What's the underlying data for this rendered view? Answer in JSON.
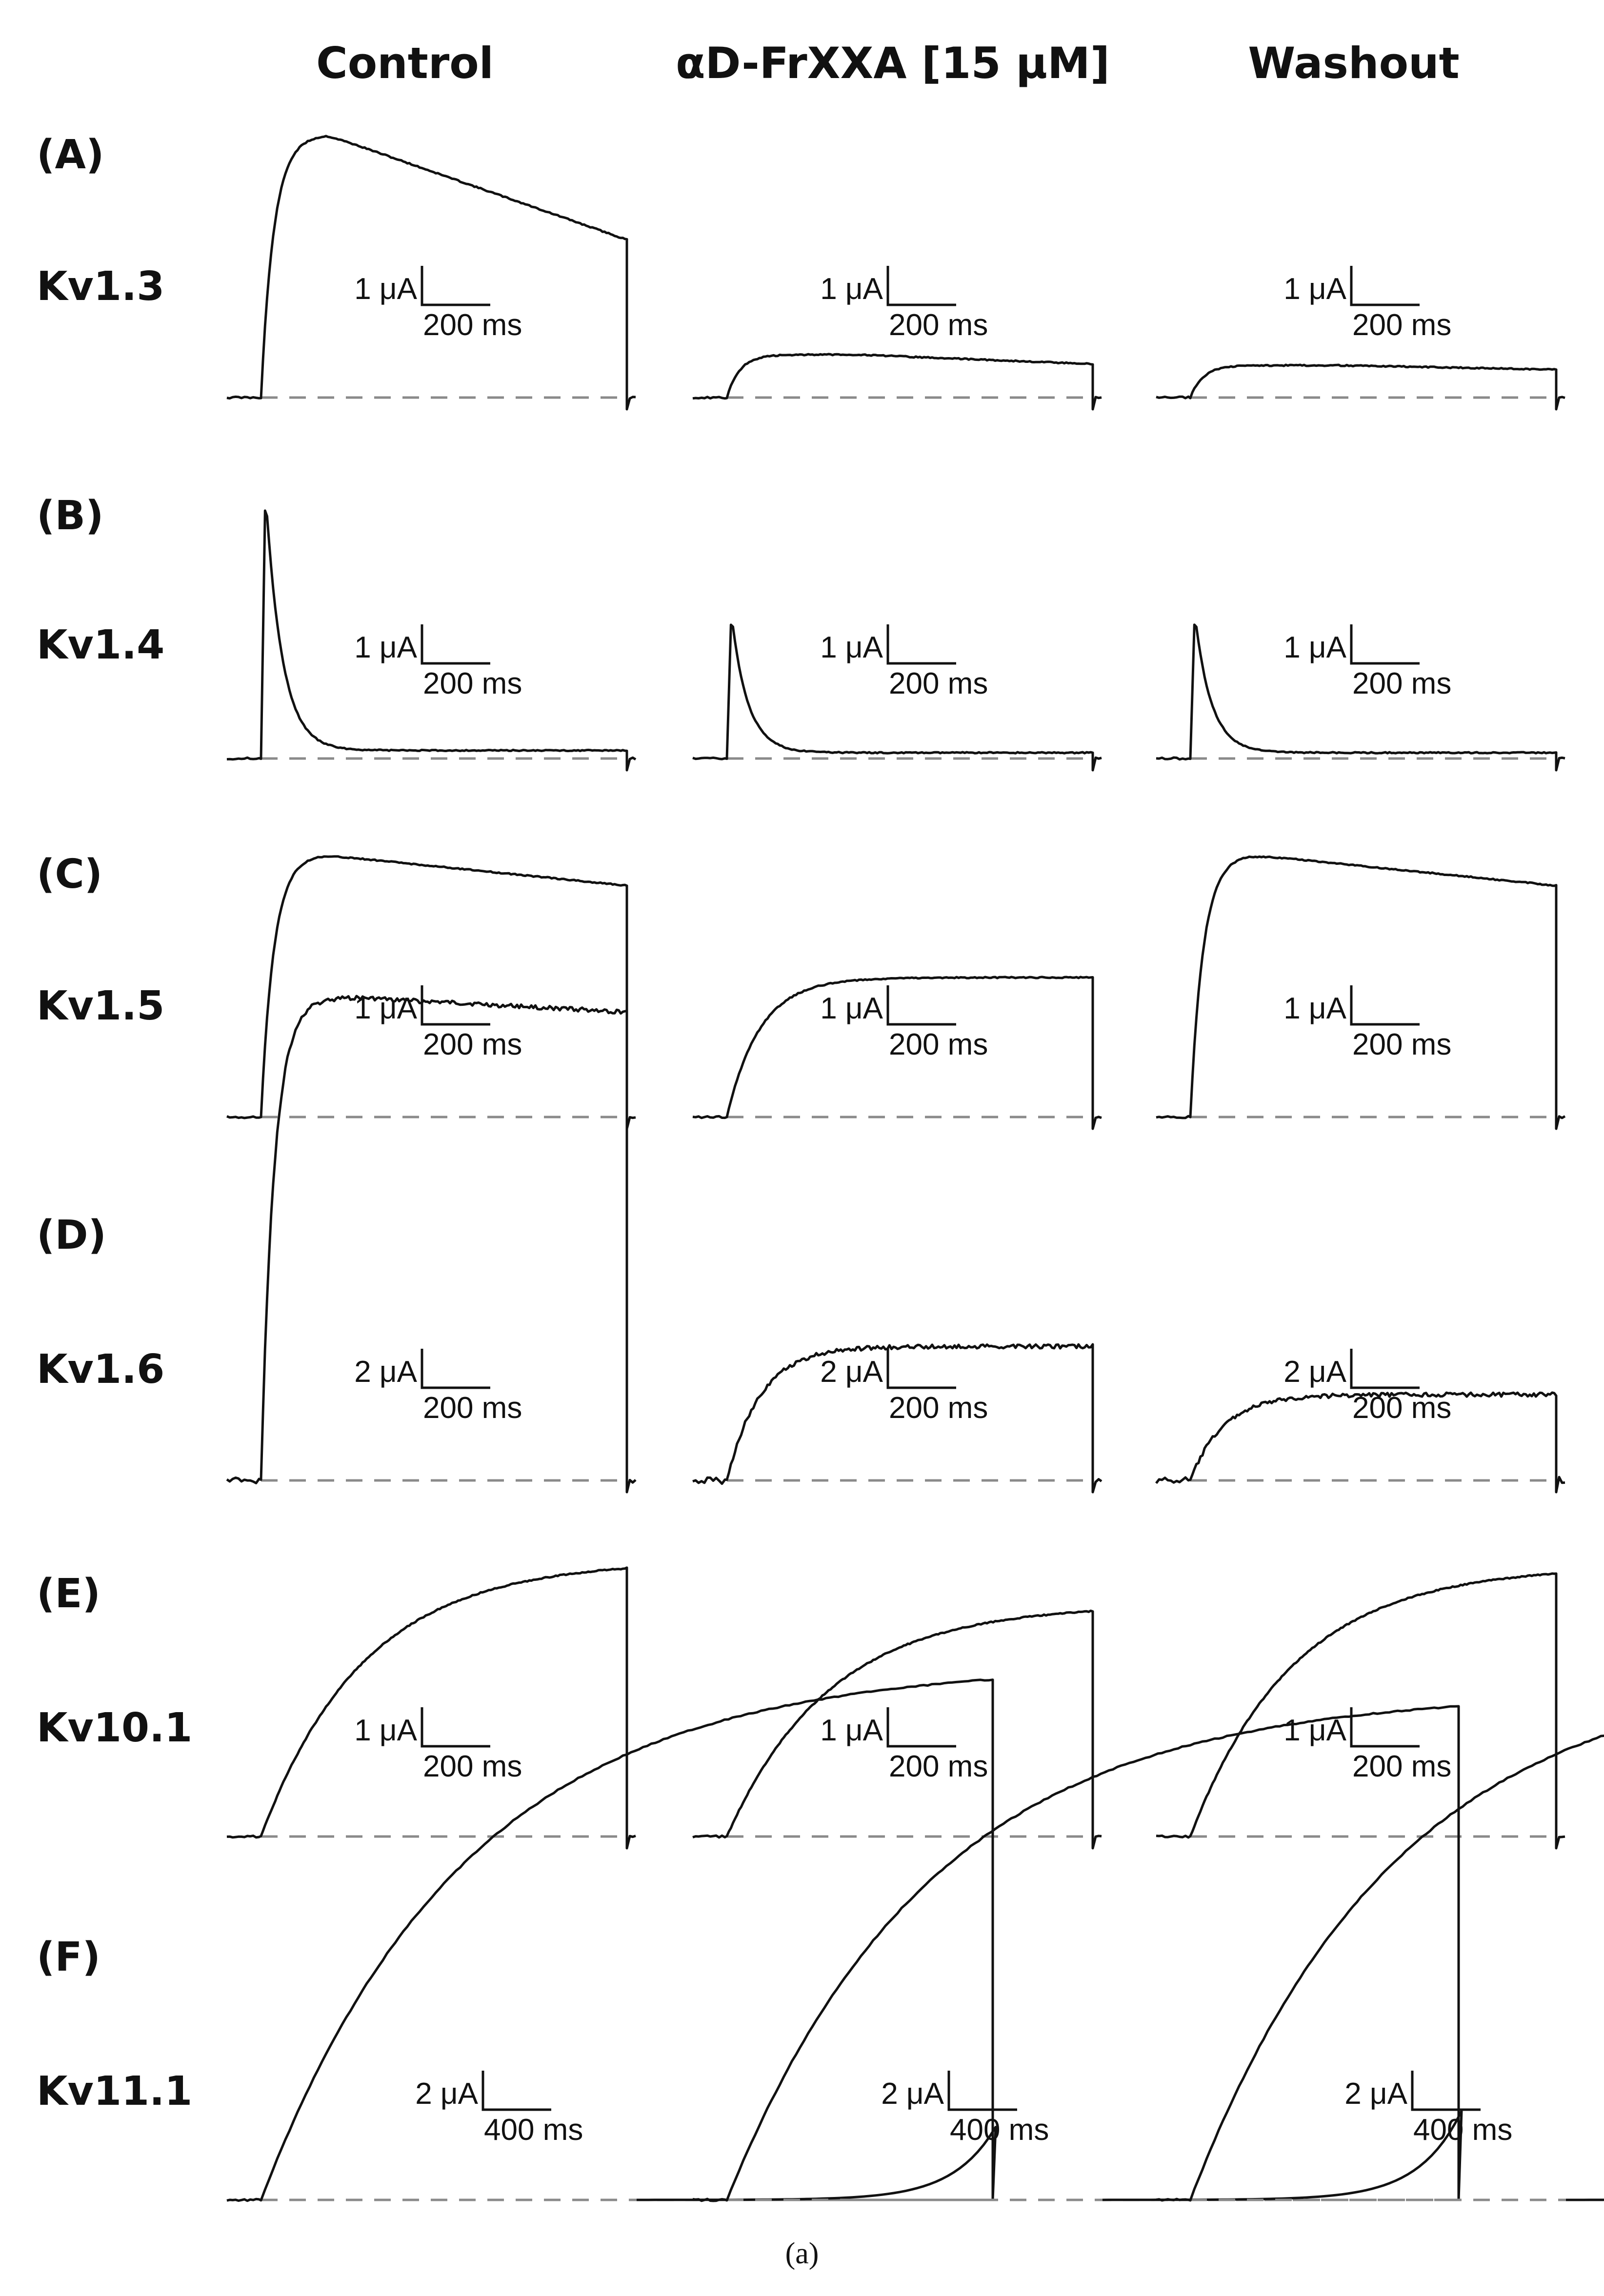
{
  "chart_data": {
    "type": "line",
    "columns": [
      "Control",
      "αD-FrXXA [15 μM]",
      "Washout"
    ],
    "caption": "(a)",
    "rows": [
      {
        "letter": "(A)",
        "channel": "Kv1.3",
        "scale_current": "1 μA",
        "scale_time": "200 ms",
        "step_ms": 1000,
        "traces": [
          {
            "condition": "Control",
            "amplitude_uA": 2.45,
            "shape": "peak_decay",
            "peak_fraction": 0.18,
            "end_fraction": 0.6
          },
          {
            "condition": "αD-FrXXA [15 μM]",
            "amplitude_uA": 0.4,
            "shape": "peak_decay",
            "peak_fraction": 0.35,
            "end_fraction": 0.78
          },
          {
            "condition": "Washout",
            "amplitude_uA": 0.3,
            "shape": "peak_decay",
            "peak_fraction": 0.4,
            "end_fraction": 0.87
          }
        ]
      },
      {
        "letter": "(B)",
        "channel": "Kv1.4",
        "scale_current": "1 μA",
        "scale_time": "200 ms",
        "step_ms": 1000,
        "traces": [
          {
            "condition": "Control",
            "amplitude_uA": 2.5,
            "shape": "inactivating",
            "end_fraction": 0.03
          },
          {
            "condition": "αD-FrXXA [15 μM]",
            "amplitude_uA": 1.35,
            "shape": "inactivating",
            "end_fraction": 0.04
          },
          {
            "condition": "Washout",
            "amplitude_uA": 1.35,
            "shape": "inactivating",
            "end_fraction": 0.04
          }
        ]
      },
      {
        "letter": "(C)",
        "channel": "Kv1.5",
        "scale_current": "1 μA",
        "scale_time": "200 ms",
        "step_ms": 1000,
        "traces": [
          {
            "condition": "Control",
            "amplitude_uA": 2.45,
            "shape": "peak_decay",
            "peak_fraction": 0.15,
            "end_fraction": 0.88
          },
          {
            "condition": "αD-FrXXA [15 μM]",
            "amplitude_uA": 1.3,
            "shape": "saturating",
            "end_fraction": 1.0
          },
          {
            "condition": "Washout",
            "amplitude_uA": 2.45,
            "shape": "peak_decay",
            "peak_fraction": 0.15,
            "end_fraction": 0.88
          }
        ]
      },
      {
        "letter": "(D)",
        "channel": "Kv1.6",
        "scale_current": "2 μA",
        "scale_time": "200 ms",
        "step_ms": 1000,
        "traces": [
          {
            "condition": "Control",
            "amplitude_uA": 4.5,
            "shape": "peak_decay",
            "peak_fraction": 0.25,
            "end_fraction": 0.97
          },
          {
            "condition": "αD-FrXXA [15 μM]",
            "amplitude_uA": 1.25,
            "shape": "saturating",
            "end_fraction": 1.0
          },
          {
            "condition": "Washout",
            "amplitude_uA": 0.8,
            "shape": "saturating",
            "end_fraction": 1.0
          }
        ]
      },
      {
        "letter": "(E)",
        "channel": "Kv10.1",
        "scale_current": "1 μA",
        "scale_time": "200 ms",
        "step_ms": 1000,
        "traces": [
          {
            "condition": "Control",
            "amplitude_uA": 2.5,
            "shape": "slow_rise",
            "end_fraction": 1.0
          },
          {
            "condition": "αD-FrXXA [15 μM]",
            "amplitude_uA": 2.1,
            "shape": "slow_rise",
            "end_fraction": 1.0
          },
          {
            "condition": "Washout",
            "amplitude_uA": 2.45,
            "shape": "slow_rise",
            "end_fraction": 1.0
          }
        ]
      },
      {
        "letter": "(F)",
        "channel": "Kv11.1",
        "scale_current": "2 μA",
        "scale_time": "400 ms",
        "step_ms": 2000,
        "traces": [
          {
            "condition": "Control",
            "amplitude_uA": 4.85,
            "shape": "slow_rise_tail",
            "end_fraction": 1.0,
            "tail_fraction": 0.14
          },
          {
            "condition": "αD-FrXXA [15 μM]",
            "amplitude_uA": 4.6,
            "shape": "slow_rise_tail",
            "end_fraction": 1.0,
            "tail_fraction": 0.18
          },
          {
            "condition": "Washout",
            "amplitude_uA": 4.85,
            "shape": "slow_rise_tail",
            "end_fraction": 1.0,
            "tail_fraction": 0.12
          }
        ]
      }
    ]
  }
}
